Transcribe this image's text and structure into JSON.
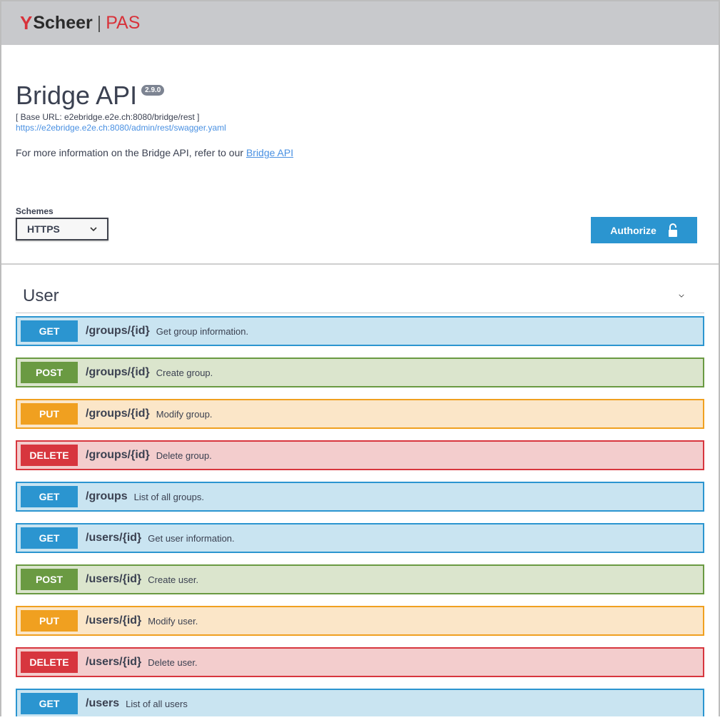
{
  "brand": {
    "mark": "Y",
    "name": "Scheer",
    "separator": "|",
    "product": "PAS"
  },
  "info": {
    "title": "Bridge API",
    "version": "2.9.0",
    "base_url": "[ Base URL: e2ebridge.e2e.ch:8080/bridge/rest ]",
    "spec_link": "https://e2ebridge.e2e.ch:8080/admin/rest/swagger.yaml",
    "description": "For more information on the Bridge API, refer to our ",
    "description_link": "Bridge API"
  },
  "schemes": {
    "label": "Schemes",
    "selected": "HTTPS"
  },
  "authorize": {
    "label": "Authorize"
  },
  "colors": {
    "GET": {
      "bg": "#c9e4f1",
      "border": "#2b95d0"
    },
    "POST": {
      "bg": "#dbe5cd",
      "border": "#6a9a42"
    },
    "PUT": {
      "bg": "#fbe6c8",
      "border": "#f0a020"
    },
    "DELETE": {
      "bg": "#f3cdcd",
      "border": "#d7363e"
    }
  },
  "tag": {
    "name": "User"
  },
  "operations": [
    {
      "method": "GET",
      "path": "/groups/{id}",
      "summary": "Get group information."
    },
    {
      "method": "POST",
      "path": "/groups/{id}",
      "summary": "Create group."
    },
    {
      "method": "PUT",
      "path": "/groups/{id}",
      "summary": "Modify group."
    },
    {
      "method": "DELETE",
      "path": "/groups/{id}",
      "summary": "Delete group."
    },
    {
      "method": "GET",
      "path": "/groups",
      "summary": "List of all groups."
    },
    {
      "method": "GET",
      "path": "/users/{id}",
      "summary": "Get user information."
    },
    {
      "method": "POST",
      "path": "/users/{id}",
      "summary": "Create user."
    },
    {
      "method": "PUT",
      "path": "/users/{id}",
      "summary": "Modify user."
    },
    {
      "method": "DELETE",
      "path": "/users/{id}",
      "summary": "Delete user."
    },
    {
      "method": "GET",
      "path": "/users",
      "summary": "List of all users"
    }
  ]
}
